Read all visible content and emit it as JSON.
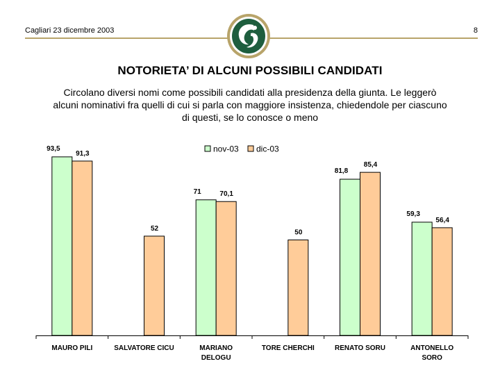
{
  "header": {
    "location_date": "Cagliari 23 dicembre 2003",
    "page_number": "8"
  },
  "title": "NOTORIETA’ DI ALCUNI POSSIBILI CANDIDATI",
  "subtitle": "Circolano diversi nomi come possibili candidati alla presidenza della giunta. Le leggerò alcuni nominativi fra quelli di cui si parla con maggiore insistenza, chiedendole per ciascuno di questi, se lo conosce o meno",
  "chart_data": {
    "type": "bar",
    "categories": [
      [
        "MAURO PILI"
      ],
      [
        "SALVATORE CICU"
      ],
      [
        "MARIANO",
        "DELOGU"
      ],
      [
        "TORE CHERCHI"
      ],
      [
        "RENATO SORU"
      ],
      [
        "ANTONELLO",
        "SORO"
      ]
    ],
    "series": [
      {
        "name": "nov-03",
        "color": "#ccffcc",
        "values": [
          93.5,
          null,
          71,
          null,
          81.8,
          59.3
        ],
        "labels": [
          "93,5",
          "",
          "71",
          "",
          "81,8",
          "59,3"
        ]
      },
      {
        "name": "dic-03",
        "color": "#ffcc99",
        "values": [
          91.3,
          52,
          70.1,
          50,
          85.4,
          56.4
        ],
        "labels": [
          "91,3",
          "52",
          "70,1",
          "50",
          "85,4",
          "56,4"
        ]
      }
    ],
    "ylim": [
      0,
      100
    ],
    "grid": false,
    "legend_position": "top-center"
  }
}
